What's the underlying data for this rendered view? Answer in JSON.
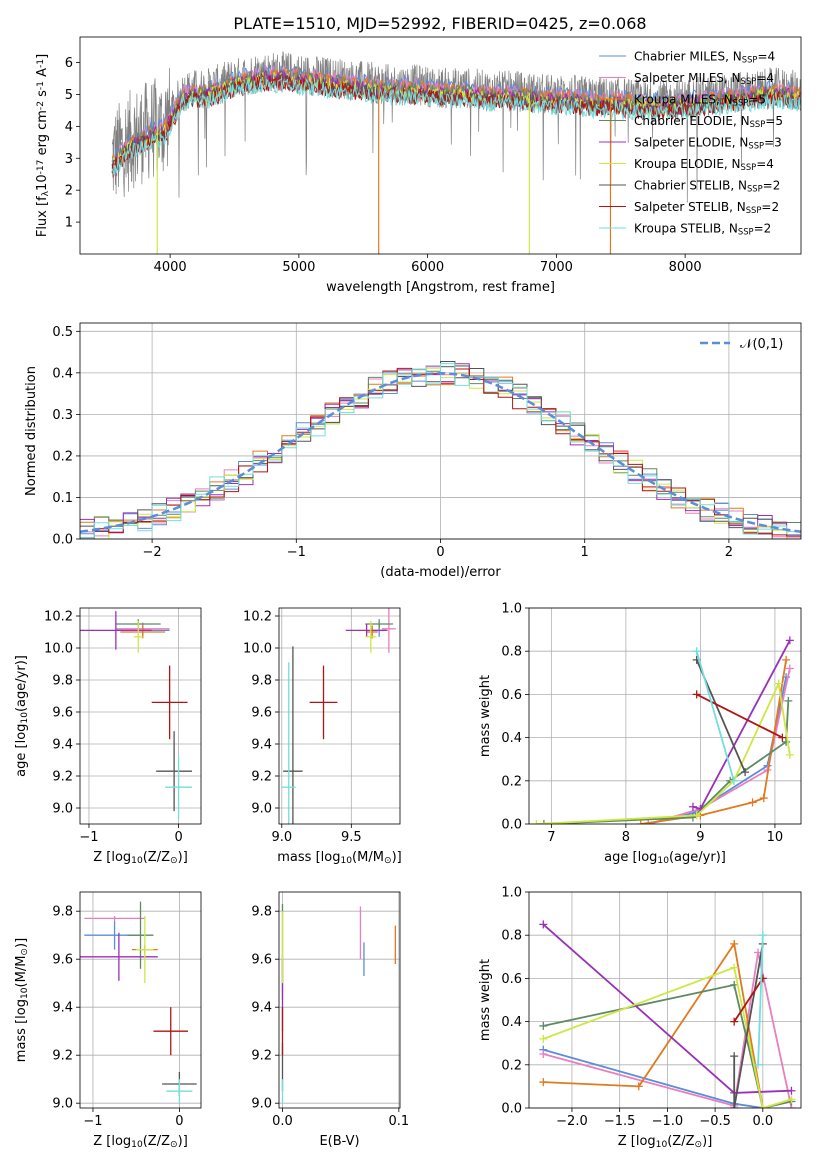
{
  "page_title": "PLATE=1510, MJD=52992, FIBERID=0425, z=0.068",
  "colors": {
    "Chabrier MILES": "#5b8ddb",
    "Salpeter MILES": "#e87fc0",
    "Kroupa MILES": "#e07a20",
    "Chabrier ELODIE": "#5e8a62",
    "Salpeter ELODIE": "#9b30b8",
    "Kroupa ELODIE": "#cde843",
    "Chabrier STELIB": "#555555",
    "Salpeter STELIB": "#b01515",
    "Kroupa STELIB": "#72dede"
  },
  "chart_data": [
    {
      "id": "spectrum",
      "type": "line",
      "xlabel": "wavelength [Angstrom, rest frame]",
      "xlim": [
        3300,
        8900
      ],
      "ylim": [
        0,
        6.8
      ],
      "xticks": [
        4000,
        5000,
        6000,
        7000,
        8000
      ],
      "yticks": [
        1,
        2,
        3,
        4,
        5,
        6
      ],
      "legend_position": "right",
      "continuum": {
        "x": [
          3550,
          3700,
          3850,
          3950,
          4100,
          4300,
          4500,
          4700,
          4900,
          5100,
          5300,
          5500,
          5700,
          5900,
          6100,
          6300,
          6500,
          6700,
          6900,
          7100,
          7300,
          7500,
          7700,
          7900,
          8100,
          8300,
          8500,
          8700,
          8900
        ],
        "y": [
          3.0,
          3.6,
          3.9,
          4.0,
          5.1,
          5.2,
          5.5,
          5.7,
          5.7,
          5.6,
          5.5,
          5.4,
          5.3,
          5.3,
          5.2,
          5.2,
          5.1,
          5.1,
          5.0,
          5.0,
          4.9,
          4.9,
          4.8,
          4.8,
          4.9,
          5.0,
          5.1,
          5.2,
          5.1
        ]
      },
      "series": [
        {
          "name": "Chabrier MILES, N$_{SSP}$=4",
          "nssp": 4
        },
        {
          "name": "Salpeter MILES, N$_{SSP}$=4",
          "nssp": 4
        },
        {
          "name": "Kroupa MILES, N$_{SSP}$=5",
          "nssp": 5
        },
        {
          "name": "Chabrier ELODIE, N$_{SSP}$=5",
          "nssp": 5
        },
        {
          "name": "Salpeter ELODIE, N$_{SSP}$=3",
          "nssp": 3
        },
        {
          "name": "Kroupa ELODIE, N$_{SSP}$=4",
          "nssp": 4
        },
        {
          "name": "Chabrier STELIB, N$_{SSP}$=2",
          "nssp": 2
        },
        {
          "name": "Salpeter STELIB, N$_{SSP}$=2",
          "nssp": 2
        },
        {
          "name": "Kroupa STELIB, N$_{SSP}$=2",
          "nssp": 2
        }
      ]
    },
    {
      "id": "histogram",
      "type": "line",
      "xlabel": "(data-model)/error",
      "ylabel": "Normed distribution",
      "xlim": [
        -2.5,
        2.5
      ],
      "ylim": [
        0,
        0.52
      ],
      "xticks": [
        -2,
        -1,
        0,
        1,
        2
      ],
      "yticks": [
        0.0,
        0.1,
        0.2,
        0.3,
        0.4,
        0.5
      ],
      "grid": true,
      "legend_position": "top-right",
      "legend_label": "$\\mathcal{N}(0,1)$",
      "bin_width": 0.1,
      "gaussian": {
        "mean": 0,
        "sigma": 1,
        "peak": 0.399
      }
    },
    {
      "id": "age-vs-z",
      "type": "scatter",
      "xlabel": "Z [log$_{10}$(Z/Z$_\\odot$)]",
      "ylabel": "age  [log$_{10}$(age/yr)]",
      "xlim": [
        -1.1,
        0.25
      ],
      "ylim": [
        8.9,
        10.25
      ],
      "xticks": [
        -1,
        0
      ],
      "yticks": [
        9.0,
        9.2,
        9.4,
        9.6,
        9.8,
        10.0,
        10.2
      ],
      "grid": true,
      "points": [
        {
          "series": "Chabrier MILES",
          "x": -0.4,
          "y": 10.11,
          "xerr": 0.3,
          "yerr": 0.04
        },
        {
          "series": "Salpeter MILES",
          "x": -0.4,
          "y": 10.12,
          "xerr": 0.3,
          "yerr": 0.04
        },
        {
          "series": "Kroupa MILES",
          "x": -0.4,
          "y": 10.1,
          "xerr": 0.25,
          "yerr": 0.04
        },
        {
          "series": "Chabrier ELODIE",
          "x": -0.45,
          "y": 10.15,
          "xerr": 0.25,
          "yerr": 0.03
        },
        {
          "series": "Salpeter ELODIE",
          "x": -0.7,
          "y": 10.11,
          "xerr": 0.4,
          "yerr": 0.12
        },
        {
          "series": "Kroupa ELODIE",
          "x": -0.45,
          "y": 10.07,
          "xerr": 0.05,
          "yerr": 0.1
        },
        {
          "series": "Chabrier STELIB",
          "x": -0.05,
          "y": 9.23,
          "xerr": 0.2,
          "yerr": 0.25
        },
        {
          "series": "Salpeter STELIB",
          "x": -0.1,
          "y": 9.66,
          "xerr": 0.2,
          "yerr": 0.23
        },
        {
          "series": "Kroupa STELIB",
          "x": 0.0,
          "y": 9.13,
          "xerr": 0.15,
          "yerr": 0.2
        }
      ]
    },
    {
      "id": "age-vs-mass",
      "type": "scatter",
      "xlabel": "mass [log$_{10}$(M/M$_\\odot$)]",
      "xlim": [
        8.98,
        9.85
      ],
      "ylim": [
        8.9,
        10.25
      ],
      "xticks": [
        9.0,
        9.5
      ],
      "yticks": [
        9.0,
        9.2,
        9.4,
        9.6,
        9.8,
        10.0,
        10.2
      ],
      "grid": true,
      "points": [
        {
          "series": "Chabrier MILES",
          "x": 9.7,
          "y": 10.11,
          "xerr": 0.05,
          "yerr": 0.04
        },
        {
          "series": "Salpeter MILES",
          "x": 9.77,
          "y": 10.12,
          "xerr": 0.05,
          "yerr": 0.15
        },
        {
          "series": "Kroupa MILES",
          "x": 9.65,
          "y": 10.1,
          "xerr": 0.04,
          "yerr": 0.04
        },
        {
          "series": "Chabrier ELODIE",
          "x": 9.7,
          "y": 10.15,
          "xerr": 0.1,
          "yerr": 0.03
        },
        {
          "series": "Salpeter ELODIE",
          "x": 9.61,
          "y": 10.11,
          "xerr": 0.15,
          "yerr": 0.04
        },
        {
          "series": "Kroupa ELODIE",
          "x": 9.64,
          "y": 10.07,
          "xerr": 0.04,
          "yerr": 0.1
        },
        {
          "series": "Chabrier STELIB",
          "x": 9.08,
          "y": 9.23,
          "xerr": 0.07,
          "yerr": 0.78
        },
        {
          "series": "Salpeter STELIB",
          "x": 9.3,
          "y": 9.66,
          "xerr": 0.1,
          "yerr": 0.23
        },
        {
          "series": "Kroupa STELIB",
          "x": 9.05,
          "y": 9.13,
          "xerr": 0.05,
          "yerr": 0.78
        }
      ]
    },
    {
      "id": "massweight-vs-age",
      "type": "line",
      "xlabel": "age  [log$_{10}$(age/yr)]",
      "ylabel": "mass weight",
      "xlim": [
        6.7,
        10.35
      ],
      "ylim": [
        0,
        1.0
      ],
      "xticks": [
        7,
        8,
        9,
        10
      ],
      "yticks": [
        0.0,
        0.2,
        0.4,
        0.6,
        0.8,
        1.0
      ],
      "grid": true,
      "series": [
        {
          "name": "Chabrier MILES",
          "x": [
            8.3,
            8.9,
            9.9,
            10.15
          ],
          "y": [
            0.0,
            0.05,
            0.27,
            0.68
          ]
        },
        {
          "name": "Salpeter MILES",
          "x": [
            8.3,
            9.0,
            9.9,
            10.2
          ],
          "y": [
            0.0,
            0.07,
            0.25,
            0.72
          ]
        },
        {
          "name": "Kroupa MILES",
          "x": [
            8.2,
            9.0,
            9.7,
            9.85,
            10.15
          ],
          "y": [
            0.0,
            0.04,
            0.1,
            0.12,
            0.76
          ]
        },
        {
          "name": "Chabrier ELODIE",
          "x": [
            6.9,
            8.9,
            9.4,
            10.15,
            10.18
          ],
          "y": [
            0.0,
            0.03,
            0.2,
            0.38,
            0.57
          ]
        },
        {
          "name": "Salpeter ELODIE",
          "x": [
            8.9,
            9.0,
            10.2
          ],
          "y": [
            0.08,
            0.07,
            0.85
          ]
        },
        {
          "name": "Kroupa ELODIE",
          "x": [
            6.8,
            8.95,
            9.45,
            10.05,
            10.2
          ],
          "y": [
            0.0,
            0.04,
            0.2,
            0.65,
            0.32
          ]
        },
        {
          "name": "Chabrier STELIB",
          "x": [
            8.95,
            9.6
          ],
          "y": [
            0.76,
            0.24
          ]
        },
        {
          "name": "Salpeter STELIB",
          "x": [
            8.95,
            10.1
          ],
          "y": [
            0.6,
            0.4
          ]
        },
        {
          "name": "Kroupa STELIB",
          "x": [
            8.95,
            9.45
          ],
          "y": [
            0.8,
            0.2
          ]
        }
      ]
    },
    {
      "id": "mass-vs-z",
      "type": "scatter",
      "xlabel": "Z [log$_{10}$(Z/Z$_\\odot$)]",
      "ylabel": "mass [log$_{10}$(M/M$_\\odot$)]",
      "xlim": [
        -1.15,
        0.25
      ],
      "ylim": [
        8.98,
        9.88
      ],
      "xticks": [
        -1,
        0
      ],
      "yticks": [
        9.0,
        9.2,
        9.4,
        9.6,
        9.8
      ],
      "grid": true,
      "points": [
        {
          "series": "Chabrier MILES",
          "x": -0.75,
          "y": 9.7,
          "xerr": 0.35,
          "yerr": 0.06
        },
        {
          "series": "Salpeter MILES",
          "x": -0.75,
          "y": 9.77,
          "xerr": 0.35,
          "yerr": 0.01
        },
        {
          "series": "Kroupa MILES",
          "x": -0.4,
          "y": 9.64,
          "xerr": 0.15,
          "yerr": 0.02
        },
        {
          "series": "Chabrier ELODIE",
          "x": -0.45,
          "y": 9.7,
          "xerr": 0.15,
          "yerr": 0.14
        },
        {
          "series": "Salpeter ELODIE",
          "x": -0.7,
          "y": 9.61,
          "xerr": 0.45,
          "yerr": 0.1
        },
        {
          "series": "Kroupa ELODIE",
          "x": -0.4,
          "y": 9.64,
          "xerr": 0.1,
          "yerr": 0.14
        },
        {
          "series": "Chabrier STELIB",
          "x": 0.0,
          "y": 9.08,
          "xerr": 0.2,
          "yerr": 0.05
        },
        {
          "series": "Salpeter STELIB",
          "x": -0.1,
          "y": 9.3,
          "xerr": 0.2,
          "yerr": 0.1
        },
        {
          "series": "Kroupa STELIB",
          "x": 0.0,
          "y": 9.05,
          "xerr": 0.15,
          "yerr": 0.05
        }
      ]
    },
    {
      "id": "mass-vs-ebv",
      "type": "scatter",
      "xlabel": "E(B-V)",
      "xlim": [
        -0.003,
        0.101
      ],
      "ylim": [
        8.98,
        9.88
      ],
      "xticks": [
        0.0,
        0.1
      ],
      "yticks": [
        9.0,
        9.2,
        9.4,
        9.6,
        9.8
      ],
      "grid": true,
      "points": [
        {
          "series": "Chabrier MILES",
          "x": 0.07,
          "y": 9.6,
          "yerr": 0.07
        },
        {
          "series": "Salpeter MILES",
          "x": 0.067,
          "y": 9.71,
          "yerr": 0.11
        },
        {
          "series": "Kroupa MILES",
          "x": 0.097,
          "y": 9.66,
          "yerr": 0.08
        },
        {
          "series": "Chabrier ELODIE",
          "x": 0.0,
          "y": 9.63,
          "yerr": 0.2
        },
        {
          "series": "Salpeter ELODIE",
          "x": 0.0,
          "y": 9.45,
          "yerr": 0.15
        },
        {
          "series": "Kroupa ELODIE",
          "x": 0.0,
          "y": 9.65,
          "yerr": 0.15
        },
        {
          "series": "Chabrier STELIB",
          "x": 0.0,
          "y": 9.15,
          "yerr": 0.1
        },
        {
          "series": "Salpeter STELIB",
          "x": 0.0,
          "y": 9.3,
          "yerr": 0.1
        },
        {
          "series": "Kroupa STELIB",
          "x": 0.0,
          "y": 9.05,
          "yerr": 0.05
        }
      ]
    },
    {
      "id": "massweight-vs-z",
      "type": "line",
      "xlabel": "Z [log$_{10}$(Z/Z$_\\odot$)]",
      "ylabel": "mass weight",
      "xlim": [
        -2.45,
        0.4
      ],
      "ylim": [
        0,
        1.0
      ],
      "xticks": [
        -2.0,
        -1.5,
        -1.0,
        -0.5,
        0.0
      ],
      "yticks": [
        0.0,
        0.2,
        0.4,
        0.6,
        0.8,
        1.0
      ],
      "grid": true,
      "series": [
        {
          "name": "Chabrier MILES",
          "x": [
            -2.3,
            -0.3,
            0.0
          ],
          "y": [
            0.27,
            0.02,
            0.0
          ]
        },
        {
          "name": "Salpeter MILES",
          "x": [
            -2.3,
            -0.3,
            -0.05,
            0.3
          ],
          "y": [
            0.25,
            0.01,
            0.72,
            0.0
          ]
        },
        {
          "name": "Kroupa MILES",
          "x": [
            -2.3,
            -1.3,
            -0.3,
            0.0
          ],
          "y": [
            0.12,
            0.1,
            0.76,
            0.0
          ]
        },
        {
          "name": "Chabrier ELODIE",
          "x": [
            -2.3,
            -0.3,
            0.0,
            0.3
          ],
          "y": [
            0.38,
            0.57,
            0.0,
            0.03
          ]
        },
        {
          "name": "Salpeter ELODIE",
          "x": [
            -2.3,
            -0.3,
            0.3
          ],
          "y": [
            0.85,
            0.07,
            0.08
          ]
        },
        {
          "name": "Kroupa ELODIE",
          "x": [
            -2.3,
            -0.3,
            0.0,
            0.3
          ],
          "y": [
            0.32,
            0.65,
            0.0,
            0.04
          ]
        },
        {
          "name": "Chabrier STELIB",
          "x": [
            -0.3,
            -0.3,
            0.0
          ],
          "y": [
            0.24,
            0.0,
            0.76
          ]
        },
        {
          "name": "Salpeter STELIB",
          "x": [
            -0.3,
            0.0
          ],
          "y": [
            0.4,
            0.6
          ]
        },
        {
          "name": "Kroupa STELIB",
          "x": [
            -0.05,
            0.0
          ],
          "y": [
            0.2,
            0.8
          ]
        }
      ]
    }
  ]
}
